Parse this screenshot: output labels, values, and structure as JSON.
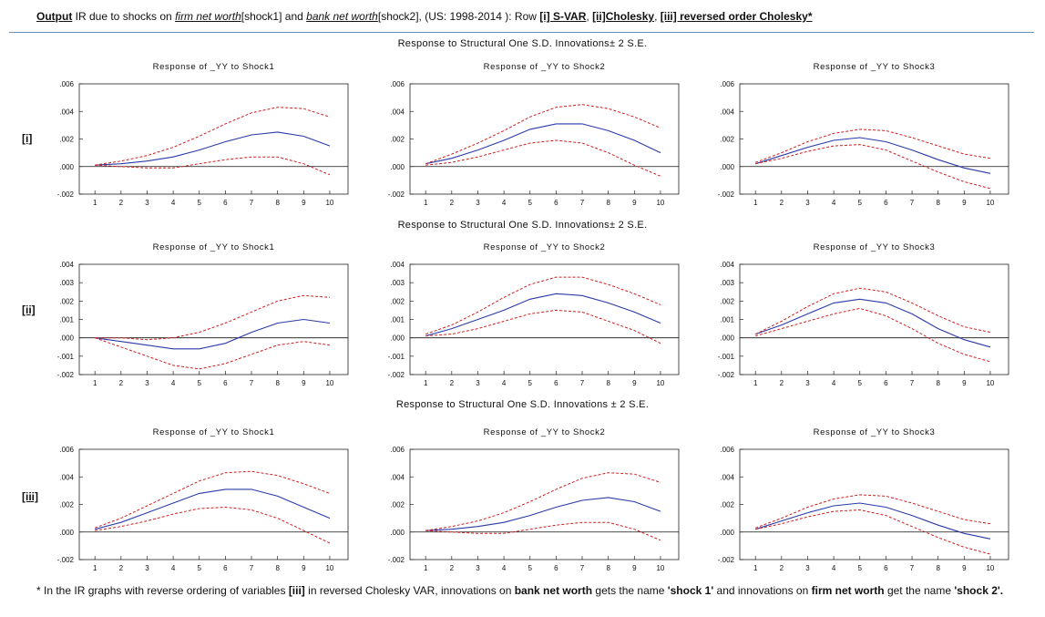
{
  "header": {
    "output": "Output",
    "text1": " IR due to shocks on ",
    "firm": "firm net worth",
    "text2": "[shock1] and ",
    "bank": "bank net worth",
    "text3": "[shock2], (US: 1998-2014  ): Row ",
    "row_i": "[i] S-VAR",
    "sep1": ", ",
    "row_ii": "[ii]Cholesky",
    "sep2": ", ",
    "row_iii": "[iii] reversed order Cholesky*"
  },
  "section_titles": [
    "Response to Structural One S.D. Innovations± 2 S.E.",
    "Response to Structural One S.D. Innovations± 2 S.E.",
    "Response to Structural One S.D. Innovations ± 2 S.E."
  ],
  "row_labels": [
    "[i]",
    "[ii]",
    "[iii]"
  ],
  "colors": {
    "response": "#2a3aa8",
    "bands": "#cc2020",
    "rule": "#6c8fb5"
  },
  "chart_data": [
    {
      "type": "line",
      "title": "Response of _YY to Shock1",
      "x": [
        1,
        2,
        3,
        4,
        5,
        6,
        7,
        8,
        9,
        10
      ],
      "ylim": [
        -0.002,
        0.006
      ],
      "yticks": [
        "-.002",
        ".000",
        ".002",
        ".004",
        ".006"
      ],
      "xticks": [
        "1",
        "2",
        "3",
        "4",
        "5",
        "6",
        "7",
        "8",
        "9",
        "10"
      ],
      "series": [
        {
          "role": "response",
          "values": [
            0.0001,
            0.0002,
            0.0004,
            0.0007,
            0.0012,
            0.0018,
            0.0023,
            0.0025,
            0.0022,
            0.0015
          ]
        },
        {
          "role": "upper",
          "values": [
            0.0001,
            0.0004,
            0.0008,
            0.0014,
            0.0022,
            0.0031,
            0.0039,
            0.0043,
            0.0042,
            0.0036
          ]
        },
        {
          "role": "lower",
          "values": [
            0.0001,
            0.0,
            -0.0001,
            -0.0001,
            0.0002,
            0.0005,
            0.0007,
            0.0007,
            0.0002,
            -0.0006
          ]
        }
      ]
    },
    {
      "type": "line",
      "title": "Response of _YY to Shock2",
      "x": [
        1,
        2,
        3,
        4,
        5,
        6,
        7,
        8,
        9,
        10
      ],
      "ylim": [
        -0.002,
        0.006
      ],
      "yticks": [
        "-.002",
        ".000",
        ".002",
        ".004",
        ".006"
      ],
      "xticks": [
        "1",
        "2",
        "3",
        "4",
        "5",
        "6",
        "7",
        "8",
        "9",
        "10"
      ],
      "series": [
        {
          "role": "response",
          "values": [
            0.0002,
            0.0006,
            0.0012,
            0.0019,
            0.0027,
            0.0031,
            0.0031,
            0.0026,
            0.0019,
            0.001
          ]
        },
        {
          "role": "upper",
          "values": [
            0.0002,
            0.0009,
            0.0017,
            0.0026,
            0.0036,
            0.0043,
            0.0045,
            0.0042,
            0.0036,
            0.0028
          ]
        },
        {
          "role": "lower",
          "values": [
            0.0001,
            0.0003,
            0.0007,
            0.0012,
            0.0017,
            0.0019,
            0.0017,
            0.001,
            0.0001,
            -0.0007
          ]
        }
      ]
    },
    {
      "type": "line",
      "title": "Response of _YY to Shock3",
      "x": [
        1,
        2,
        3,
        4,
        5,
        6,
        7,
        8,
        9,
        10
      ],
      "ylim": [
        -0.002,
        0.006
      ],
      "yticks": [
        "-.002",
        ".000",
        ".002",
        ".004",
        ".006"
      ],
      "xticks": [
        "1",
        "2",
        "3",
        "4",
        "5",
        "6",
        "7",
        "8",
        "9",
        "10"
      ],
      "series": [
        {
          "role": "response",
          "values": [
            0.0002,
            0.0008,
            0.0014,
            0.0019,
            0.0021,
            0.0018,
            0.0012,
            0.0005,
            -0.0001,
            -0.0005
          ]
        },
        {
          "role": "upper",
          "values": [
            0.0003,
            0.001,
            0.0018,
            0.0024,
            0.0027,
            0.0026,
            0.0021,
            0.0015,
            0.0009,
            0.0006
          ]
        },
        {
          "role": "lower",
          "values": [
            0.0002,
            0.0006,
            0.0011,
            0.0015,
            0.0016,
            0.0012,
            0.0004,
            -0.0004,
            -0.0011,
            -0.0016
          ]
        }
      ]
    },
    {
      "type": "line",
      "title": "Response of _YY to Shock1",
      "x": [
        1,
        2,
        3,
        4,
        5,
        6,
        7,
        8,
        9,
        10
      ],
      "ylim": [
        -0.002,
        0.004
      ],
      "yticks": [
        "-.002",
        "-.001",
        ".000",
        ".001",
        ".002",
        ".003",
        ".004"
      ],
      "xticks": [
        "1",
        "2",
        "3",
        "4",
        "5",
        "6",
        "7",
        "8",
        "9",
        "10"
      ],
      "series": [
        {
          "role": "response",
          "values": [
            0.0,
            -0.0002,
            -0.0004,
            -0.0006,
            -0.0006,
            -0.0003,
            0.0003,
            0.0008,
            0.001,
            0.0008
          ]
        },
        {
          "role": "upper",
          "values": [
            0.0,
            0.0,
            -0.0001,
            0.0,
            0.0003,
            0.0008,
            0.0014,
            0.002,
            0.0023,
            0.0022
          ]
        },
        {
          "role": "lower",
          "values": [
            0.0,
            -0.0005,
            -0.001,
            -0.0015,
            -0.0017,
            -0.0014,
            -0.0009,
            -0.0004,
            -0.0002,
            -0.0004
          ]
        }
      ]
    },
    {
      "type": "line",
      "title": "Response of _YY to Shock2",
      "x": [
        1,
        2,
        3,
        4,
        5,
        6,
        7,
        8,
        9,
        10
      ],
      "ylim": [
        -0.002,
        0.004
      ],
      "yticks": [
        "-.002",
        "-.001",
        ".000",
        ".001",
        ".002",
        ".003",
        ".004"
      ],
      "xticks": [
        "1",
        "2",
        "3",
        "4",
        "5",
        "6",
        "7",
        "8",
        "9",
        "10"
      ],
      "series": [
        {
          "role": "response",
          "values": [
            0.0001,
            0.0005,
            0.001,
            0.0015,
            0.0021,
            0.0024,
            0.0023,
            0.0019,
            0.0014,
            0.0008
          ]
        },
        {
          "role": "upper",
          "values": [
            0.0002,
            0.0007,
            0.0014,
            0.0022,
            0.0029,
            0.0033,
            0.0033,
            0.0029,
            0.0024,
            0.0018
          ]
        },
        {
          "role": "lower",
          "values": [
            0.0001,
            0.0002,
            0.0005,
            0.0009,
            0.0013,
            0.0015,
            0.0014,
            0.0009,
            0.0004,
            -0.0003
          ]
        }
      ]
    },
    {
      "type": "line",
      "title": "Response of _YY to Shock3",
      "x": [
        1,
        2,
        3,
        4,
        5,
        6,
        7,
        8,
        9,
        10
      ],
      "ylim": [
        -0.002,
        0.004
      ],
      "yticks": [
        "-.002",
        "-.001",
        ".000",
        ".001",
        ".002",
        ".003",
        ".004"
      ],
      "xticks": [
        "1",
        "2",
        "3",
        "4",
        "5",
        "6",
        "7",
        "8",
        "9",
        "10"
      ],
      "series": [
        {
          "role": "response",
          "values": [
            0.0002,
            0.0007,
            0.0013,
            0.0019,
            0.0021,
            0.0019,
            0.0013,
            0.0005,
            -0.0001,
            -0.0005
          ]
        },
        {
          "role": "upper",
          "values": [
            0.0002,
            0.0009,
            0.0017,
            0.0024,
            0.0027,
            0.0025,
            0.0019,
            0.0012,
            0.0006,
            0.0003
          ]
        },
        {
          "role": "lower",
          "values": [
            0.0001,
            0.0005,
            0.0009,
            0.0013,
            0.0016,
            0.0012,
            0.0005,
            -0.0003,
            -0.0009,
            -0.0013
          ]
        }
      ]
    },
    {
      "type": "line",
      "title": "Response of _YY to Shock1",
      "x": [
        1,
        2,
        3,
        4,
        5,
        6,
        7,
        8,
        9,
        10
      ],
      "ylim": [
        -0.002,
        0.006
      ],
      "yticks": [
        "-.002",
        ".000",
        ".002",
        ".004",
        ".006"
      ],
      "xticks": [
        "1",
        "2",
        "3",
        "4",
        "5",
        "6",
        "7",
        "8",
        "9",
        "10"
      ],
      "series": [
        {
          "role": "response",
          "values": [
            0.0002,
            0.0007,
            0.0014,
            0.0021,
            0.0028,
            0.0031,
            0.0031,
            0.0026,
            0.0018,
            0.001
          ]
        },
        {
          "role": "upper",
          "values": [
            0.0003,
            0.001,
            0.0019,
            0.0028,
            0.0037,
            0.0043,
            0.0044,
            0.0041,
            0.0035,
            0.0028
          ]
        },
        {
          "role": "lower",
          "values": [
            0.0001,
            0.0004,
            0.0008,
            0.0013,
            0.0017,
            0.0018,
            0.0016,
            0.001,
            0.0001,
            -0.0008
          ]
        }
      ]
    },
    {
      "type": "line",
      "title": "Response of _YY to Shock2",
      "x": [
        1,
        2,
        3,
        4,
        5,
        6,
        7,
        8,
        9,
        10
      ],
      "ylim": [
        -0.002,
        0.006
      ],
      "yticks": [
        "-.002",
        ".000",
        ".002",
        ".004",
        ".006"
      ],
      "xticks": [
        "1",
        "2",
        "3",
        "4",
        "5",
        "6",
        "7",
        "8",
        "9",
        "10"
      ],
      "series": [
        {
          "role": "response",
          "values": [
            0.0001,
            0.0002,
            0.0004,
            0.0007,
            0.0012,
            0.0018,
            0.0023,
            0.0025,
            0.0022,
            0.0015
          ]
        },
        {
          "role": "upper",
          "values": [
            0.0001,
            0.0004,
            0.0008,
            0.0014,
            0.0022,
            0.0031,
            0.0039,
            0.0043,
            0.0042,
            0.0036
          ]
        },
        {
          "role": "lower",
          "values": [
            0.0001,
            0.0,
            -0.0001,
            -0.0001,
            0.0002,
            0.0005,
            0.0007,
            0.0007,
            0.0002,
            -0.0006
          ]
        }
      ]
    },
    {
      "type": "line",
      "title": "Response of _YY to Shock3",
      "x": [
        1,
        2,
        3,
        4,
        5,
        6,
        7,
        8,
        9,
        10
      ],
      "ylim": [
        -0.002,
        0.006
      ],
      "yticks": [
        "-.002",
        ".000",
        ".002",
        ".004",
        ".006"
      ],
      "xticks": [
        "1",
        "2",
        "3",
        "4",
        "5",
        "6",
        "7",
        "8",
        "9",
        "10"
      ],
      "series": [
        {
          "role": "response",
          "values": [
            0.0002,
            0.0008,
            0.0014,
            0.0019,
            0.0021,
            0.0018,
            0.0012,
            0.0005,
            -0.0001,
            -0.0005
          ]
        },
        {
          "role": "upper",
          "values": [
            0.0003,
            0.001,
            0.0018,
            0.0024,
            0.0027,
            0.0026,
            0.0021,
            0.0015,
            0.0009,
            0.0006
          ]
        },
        {
          "role": "lower",
          "values": [
            0.0002,
            0.0006,
            0.0011,
            0.0015,
            0.0016,
            0.0012,
            0.0004,
            -0.0004,
            -0.0011,
            -0.0016
          ]
        }
      ]
    }
  ],
  "footnote": {
    "p1": "* In the IR graphs with reverse ordering of variables ",
    "b1": "[iii]",
    "p2": " in reversed Cholesky VAR, innovations on ",
    "b2": "bank net worth",
    "p3": " gets the name ",
    "b3": "'shock 1'",
    "p4": " and innovations on ",
    "b4": "firm net worth",
    "p5": " get the name  ",
    "b5": "'shock 2'."
  }
}
